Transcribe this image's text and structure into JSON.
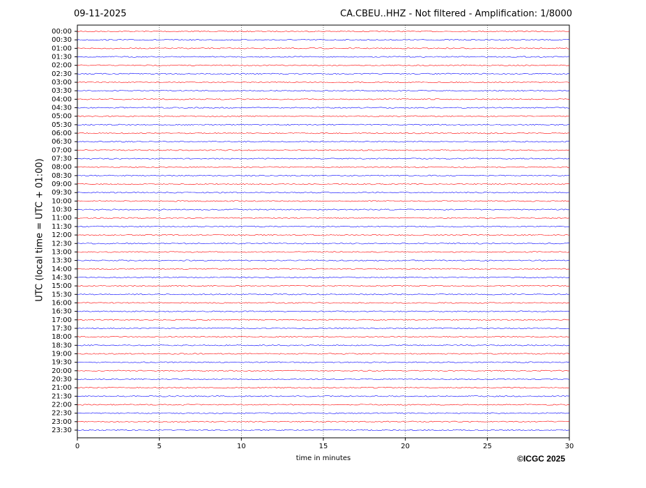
{
  "chart_data": {
    "type": "helicorder",
    "date": "09-11-2025",
    "title": "CA.CBEU..HHZ - Not filtered - Amplification: 1/8000",
    "ylabel": "UTC (local time = UTC + 01:00)",
    "xlabel": "time in minutes",
    "credit": "©ICGC 2025",
    "categories": [
      "00:00",
      "00:30",
      "01:00",
      "01:30",
      "02:00",
      "02:30",
      "03:00",
      "03:30",
      "04:00",
      "04:30",
      "05:00",
      "05:30",
      "06:00",
      "06:30",
      "07:00",
      "07:30",
      "08:00",
      "08:30",
      "09:00",
      "09:30",
      "10:00",
      "10:30",
      "11:00",
      "11:30",
      "12:00",
      "12:30",
      "13:00",
      "13:30",
      "14:00",
      "14:30",
      "15:00",
      "15:30",
      "16:00",
      "16:30",
      "17:00",
      "17:30",
      "18:00",
      "18:30",
      "19:00",
      "19:30",
      "20:00",
      "20:30",
      "21:00",
      "21:30",
      "22:00",
      "22:30",
      "23:00",
      "23:30"
    ],
    "colors": [
      "#ff0000",
      "#0000ff"
    ],
    "xlim": [
      0,
      30
    ],
    "xticks": [
      0,
      5,
      10,
      15,
      20,
      25,
      30
    ],
    "grid": true
  }
}
